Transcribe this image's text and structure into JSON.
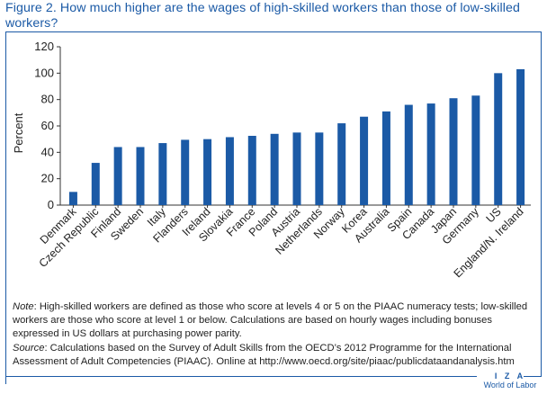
{
  "figure": {
    "title": "Figure 2. How much higher are the wages of high-skilled workers than those of low-skilled workers?"
  },
  "chart_data": {
    "type": "bar",
    "title": "How much higher are the wages of high-skilled workers than those of low-skilled workers?",
    "xlabel": "",
    "ylabel": "Percent",
    "ylim": [
      0,
      120
    ],
    "yticks": [
      0,
      20,
      40,
      60,
      80,
      100,
      120
    ],
    "grid": false,
    "bar_color": "#1b5aa6",
    "categories": [
      "Denmark",
      "Czech Republic",
      "Finland",
      "Sweden",
      "Italy",
      "Flanders",
      "Ireland",
      "Slovakia",
      "France",
      "Poland",
      "Austria",
      "Netherlands",
      "Norway",
      "Korea",
      "Australia",
      "Spain",
      "Canada",
      "Japan",
      "Germany",
      "US",
      "England/N. Ireland"
    ],
    "values": [
      10,
      32,
      44,
      44,
      47,
      49.5,
      50,
      51.5,
      52.5,
      54,
      55,
      55,
      62,
      67,
      71,
      76,
      77,
      81,
      83,
      100,
      103
    ]
  },
  "notes": {
    "note_label": "Note",
    "note_text": ": High-skilled workers are defined as those who score at levels 4 or 5 on the PIAAC numeracy tests; low-skilled workers are those who score at level 1 or below. Calculations are based on hourly wages including bonuses expressed in US dollars at purchasing power parity.",
    "source_label": "Source",
    "source_text": ": Calculations based on the Survey of Adult Skills from the OECD’s 2012 Programme for the International Assessment of Adult Competencies (PIAAC). Online at http://www.oecd.org/site/piaac/publicdataandanalysis.htm"
  },
  "branding": {
    "logo_text": "I Z A",
    "tagline": "World of Labor"
  },
  "colors": {
    "accent": "#1b5aa6",
    "bars": "#1b5aa6"
  }
}
